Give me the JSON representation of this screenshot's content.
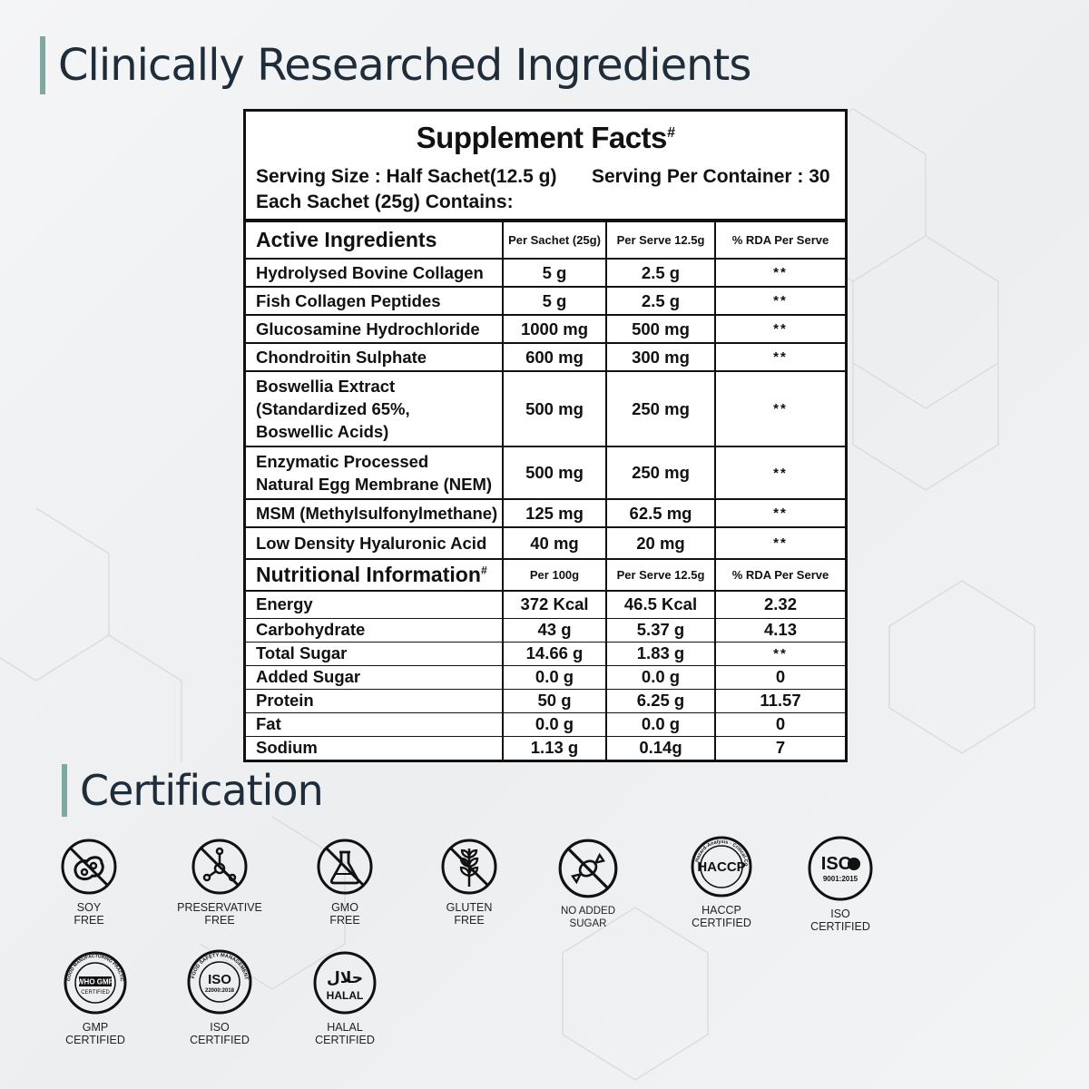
{
  "headings": {
    "ingredients": "Clinically Researched Ingredients",
    "certification": "Certification"
  },
  "facts": {
    "title": "Supplement Facts",
    "title_mark": "#",
    "serving_size": "Serving Size : Half Sachet(12.5 g)",
    "serving_per_container": "Serving Per Container : 30",
    "each_sachet": "Each Sachet (25g) Contains:",
    "active_header": {
      "name": "Active Ingredients",
      "col1": "Per Sachet (25g)",
      "col2": "Per Serve 12.5g",
      "col3": "% RDA Per Serve"
    },
    "active_rows": [
      {
        "name": "Hydrolysed Bovine Collagen",
        "sachet": "5 g",
        "serve": "2.5 g",
        "rda": "**"
      },
      {
        "name": "Fish Collagen Peptides",
        "sachet": "5 g",
        "serve": "2.5 g",
        "rda": "**"
      },
      {
        "name": "Glucosamine Hydrochloride",
        "sachet": "1000 mg",
        "serve": "500 mg",
        "rda": "**"
      },
      {
        "name": "Chondroitin Sulphate",
        "sachet": "600 mg",
        "serve": "300 mg",
        "rda": "**"
      },
      {
        "name": "Boswellia Extract\n(Standardized 65%,\nBoswellic Acids)",
        "sachet": "500 mg",
        "serve": "250 mg",
        "rda": "**"
      },
      {
        "name": "Enzymatic Processed\nNatural Egg Membrane (NEM)",
        "sachet": "500 mg",
        "serve": "250 mg",
        "rda": "**"
      },
      {
        "name": "MSM (Methylsulfonylmethane)",
        "sachet": "125 mg",
        "serve": "62.5 mg",
        "rda": "**"
      },
      {
        "name": "Low Density Hyaluronic Acid",
        "sachet": "40 mg",
        "serve": "20 mg",
        "rda": "**"
      }
    ],
    "nutrition_header": {
      "name": "Nutritional Information",
      "mark": "#",
      "col1": "Per 100g",
      "col2": "Per Serve 12.5g",
      "col3": "% RDA Per Serve"
    },
    "nutrition_rows": [
      {
        "name": "Energy",
        "per100": "372 Kcal",
        "serve": "46.5 Kcal",
        "rda": "2.32"
      },
      {
        "name": "Carbohydrate",
        "per100": "43 g",
        "serve": "5.37 g",
        "rda": "4.13"
      },
      {
        "name": "Total Sugar",
        "per100": "14.66 g",
        "serve": "1.83 g",
        "rda": "**"
      },
      {
        "name": "Added Sugar",
        "per100": "0.0 g",
        "serve": "0.0 g",
        "rda": "0"
      },
      {
        "name": "Protein",
        "per100": "50 g",
        "serve": "6.25 g",
        "rda": "11.57"
      },
      {
        "name": "Fat",
        "per100": "0.0 g",
        "serve": "0.0 g",
        "rda": "0"
      },
      {
        "name": "Sodium",
        "per100": "1.13 g",
        "serve": "0.14g",
        "rda": "7"
      }
    ]
  },
  "certifications": [
    {
      "icon": "soy-free-icon",
      "line1": "SOY",
      "line2": "FREE"
    },
    {
      "icon": "preservative-free-icon",
      "line1": "PRESERVATIVE",
      "line2": "FREE"
    },
    {
      "icon": "gmo-free-icon",
      "line1": "GMO",
      "line2": "FREE"
    },
    {
      "icon": "gluten-free-icon",
      "line1": "GLUTEN",
      "line2": "FREE"
    },
    {
      "icon": "no-added-sugar-icon",
      "line1": "NO ADDED",
      "line2": "SUGAR"
    },
    {
      "icon": "haccp-icon",
      "line1": "HACCP",
      "line2": "CERTIFIED",
      "badge": "HACCP",
      "ring_text": "Hazard-Analysis · Critical-Control-Point"
    },
    {
      "icon": "iso-9001-icon",
      "line1": "ISO",
      "line2": "CERTIFIED",
      "badge": "ISO",
      "badge_sub": "9001:2015"
    },
    {
      "icon": "gmp-icon",
      "line1": "GMP",
      "line2": "CERTIFIED",
      "badge": "WHO GMP",
      "badge_sub": "CERTIFIED",
      "ring_text": "GOOD MANUFACTURING PRACTICE · QUALITY PRODUCT"
    },
    {
      "icon": "iso-22000-icon",
      "line1": "ISO",
      "line2": "CERTIFIED",
      "badge": "ISO",
      "badge_sub": "22000:2018",
      "ring_text": "FOOD SAFETY MANAGEMENT SYSTEM"
    },
    {
      "icon": "halal-icon",
      "line1": "HALAL",
      "line2": "CERTIFIED",
      "badge": "حلال",
      "badge_sub": "HALAL"
    }
  ],
  "colors": {
    "accent": "#7fa8a2",
    "heading": "#1f2d3a",
    "table_border": "#111111"
  }
}
